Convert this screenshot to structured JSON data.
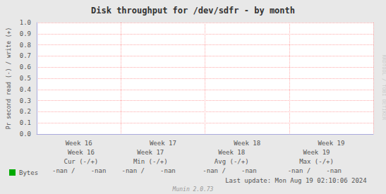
{
  "chart_data": {
    "type": "line",
    "title": "Disk throughput for /dev/sdfr - by month",
    "ylabel": "Pr second read (-) / write (+)",
    "categories": [
      "Week 16",
      "Week 17",
      "Week 18",
      "Week 19"
    ],
    "series": [
      {
        "name": "Bytes",
        "color": "#00aa00",
        "values": [
          null,
          null,
          null,
          null
        ]
      }
    ],
    "ylim": [
      0,
      1
    ],
    "yticks": [
      {
        "value": 0,
        "label": "0.0"
      },
      0.1,
      0.2,
      0.3,
      0.4,
      0.5,
      0.6,
      0.7,
      0.8,
      0.9,
      {
        "value": 1,
        "label": "1.0"
      }
    ],
    "grid": true,
    "annotations": {
      "headers": [
        "Cur (-/+)",
        "Min (-/+)",
        "Avg (-/+)",
        "Max (-/+)"
      ],
      "values": [
        "-nan /",
        "-nan"
      ],
      "last_update": "Last update: Mon Aug 19 02:10:06 2024",
      "footer": "Munin 2.0.73",
      "watermark": "RRDTOOL / TOBI OETIKER"
    }
  }
}
